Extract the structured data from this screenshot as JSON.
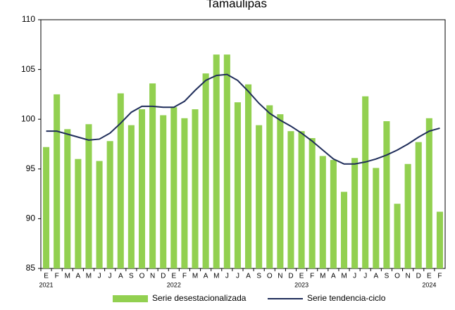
{
  "chart_data": {
    "type": "bar-line",
    "title": "Tamaulipas",
    "categories": [
      "E",
      "F",
      "M",
      "A",
      "M",
      "J",
      "J",
      "A",
      "S",
      "O",
      "N",
      "D",
      "E",
      "F",
      "M",
      "A",
      "M",
      "J",
      "J",
      "A",
      "S",
      "O",
      "N",
      "D",
      "E",
      "F",
      "M",
      "A",
      "M",
      "J",
      "J",
      "A",
      "S",
      "O",
      "N",
      "D",
      "E",
      "F"
    ],
    "category_groups": [
      "2021",
      null,
      null,
      null,
      null,
      null,
      null,
      null,
      null,
      null,
      null,
      null,
      "2022",
      null,
      null,
      null,
      null,
      null,
      null,
      null,
      null,
      null,
      null,
      null,
      "2023",
      null,
      null,
      null,
      null,
      null,
      null,
      null,
      null,
      null,
      null,
      null,
      "2024",
      null
    ],
    "series": [
      {
        "name": "Serie desestacionalizada",
        "type": "bar",
        "color": "#92d050",
        "values": [
          97.2,
          102.5,
          99.0,
          96.0,
          99.5,
          95.8,
          97.8,
          102.6,
          99.4,
          101.0,
          103.6,
          100.4,
          101.2,
          100.1,
          101.0,
          104.6,
          106.5,
          106.5,
          101.7,
          103.5,
          99.4,
          101.4,
          100.5,
          98.8,
          98.8,
          98.1,
          96.3,
          95.9,
          92.7,
          96.1,
          102.3,
          95.1,
          99.8,
          91.5,
          95.5,
          97.7,
          100.1,
          90.7
        ]
      },
      {
        "name": "Serie tendencia-ciclo",
        "type": "line",
        "color": "#1f2d5a",
        "values": [
          98.8,
          98.8,
          98.5,
          98.2,
          97.9,
          98.0,
          98.6,
          99.6,
          100.7,
          101.3,
          101.3,
          101.2,
          101.2,
          101.8,
          102.9,
          103.9,
          104.4,
          104.5,
          103.9,
          102.8,
          101.6,
          100.6,
          99.9,
          99.3,
          98.6,
          97.8,
          96.9,
          96.0,
          95.5,
          95.5,
          95.7,
          96.0,
          96.4,
          96.9,
          97.5,
          98.2,
          98.8,
          99.1
        ]
      }
    ],
    "ylim": [
      85,
      110
    ],
    "yticks": [
      85,
      90,
      95,
      100,
      105,
      110
    ],
    "grid": false,
    "legend": "bottom"
  }
}
